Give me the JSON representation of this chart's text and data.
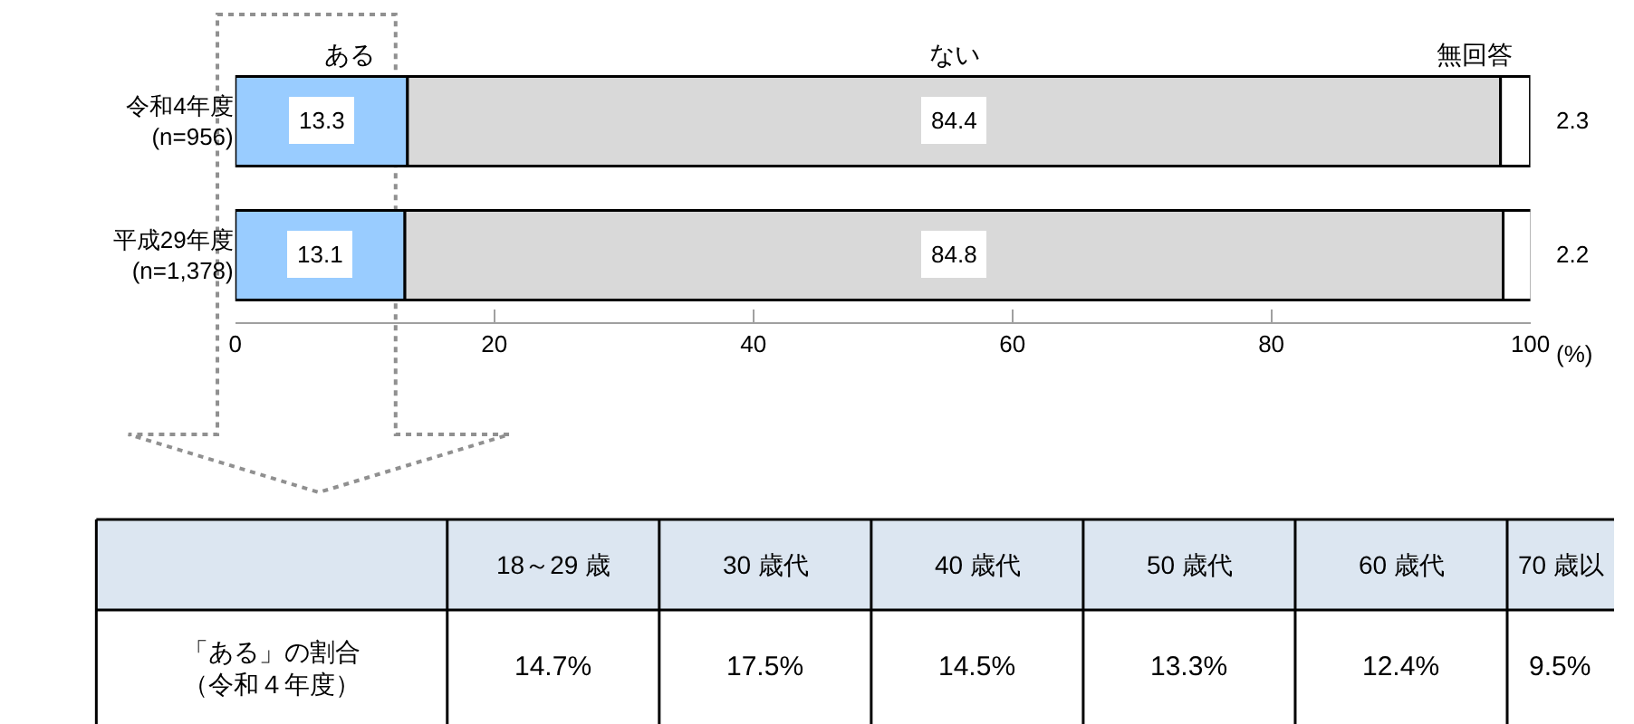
{
  "chart_data": [
    {
      "type": "bar",
      "orientation": "horizontal",
      "stacked": true,
      "categories": [
        "令和4年度\n(n=956)",
        "平成29年度\n(n=1,378)"
      ],
      "series": [
        {
          "name": "ある",
          "color": "#99ccff",
          "values": [
            13.3,
            13.1
          ]
        },
        {
          "name": "ない",
          "color": "#d9d9d9",
          "values": [
            84.4,
            84.8
          ]
        },
        {
          "name": "無回答",
          "color": "#ffffff",
          "values": [
            2.3,
            2.2
          ]
        }
      ],
      "xlim": [
        0,
        100
      ],
      "xticks": [
        0,
        20,
        40,
        60,
        80,
        100
      ],
      "xlabel": "(%)",
      "data_labels": true,
      "legend": false
    },
    {
      "type": "other",
      "color": "#dce6f1",
      "ylabel": "「ある」の割合（令和４年度）",
      "categories": [
        "18～29 歳",
        "30 歳代",
        "40 歳代",
        "50 歳代",
        "60 歳代",
        "70 歳以"
      ],
      "value_labels": [
        "14.7%",
        "17.5%",
        "14.5%",
        "13.3%",
        "12.4%",
        "9.5%"
      ]
    }
  ]
}
